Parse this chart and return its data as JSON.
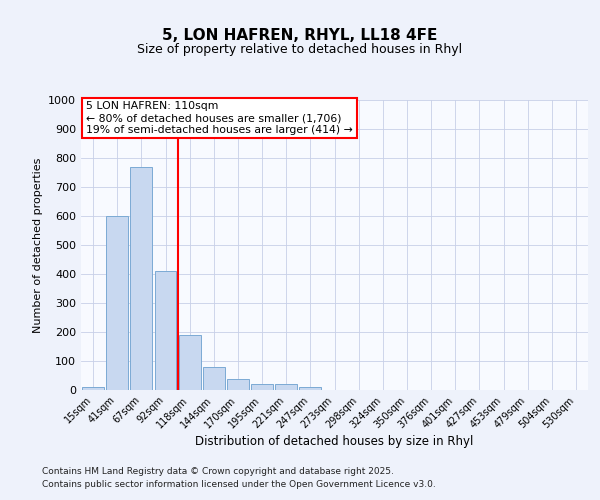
{
  "title1": "5, LON HAFREN, RHYL, LL18 4FE",
  "title2": "Size of property relative to detached houses in Rhyl",
  "xlabel": "Distribution of detached houses by size in Rhyl",
  "ylabel": "Number of detached properties",
  "bar_labels": [
    "15sqm",
    "41sqm",
    "67sqm",
    "92sqm",
    "118sqm",
    "144sqm",
    "170sqm",
    "195sqm",
    "221sqm",
    "247sqm",
    "273sqm",
    "298sqm",
    "324sqm",
    "350sqm",
    "376sqm",
    "401sqm",
    "427sqm",
    "453sqm",
    "479sqm",
    "504sqm",
    "530sqm"
  ],
  "bar_values": [
    10,
    600,
    770,
    410,
    190,
    78,
    38,
    20,
    20,
    10,
    0,
    0,
    0,
    0,
    0,
    0,
    0,
    0,
    0,
    0,
    0
  ],
  "bar_color": "#c8d8f0",
  "bar_edge_color": "#7baad4",
  "vline_color": "red",
  "vline_pos": 3.5,
  "ylim": [
    0,
    1000
  ],
  "yticks": [
    0,
    100,
    200,
    300,
    400,
    500,
    600,
    700,
    800,
    900,
    1000
  ],
  "annotation_title": "5 LON HAFREN: 110sqm",
  "annotation_line1": "← 80% of detached houses are smaller (1,706)",
  "annotation_line2": "19% of semi-detached houses are larger (414) →",
  "footer1": "Contains HM Land Registry data © Crown copyright and database right 2025.",
  "footer2": "Contains public sector information licensed under the Open Government Licence v3.0.",
  "bg_color": "#eef2fb",
  "plot_bg_color": "#f8faff",
  "grid_color": "#c8d0e8"
}
